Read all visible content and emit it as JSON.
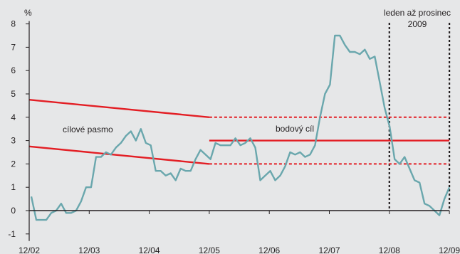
{
  "chart_data": {
    "type": "line",
    "ylabel": "%",
    "ylim": [
      -1,
      8
    ],
    "y_ticks": [
      -1,
      0,
      1,
      2,
      3,
      4,
      5,
      6,
      7,
      8
    ],
    "x_ticks": [
      "12/02",
      "12/03",
      "12/04",
      "12/05",
      "12/06",
      "12/07",
      "12/08",
      "12/09"
    ],
    "grid": false,
    "colors": {
      "series": "#6aa7ad",
      "target": "#e31e24",
      "axis": "#231f20",
      "background": "#e6e7e8"
    },
    "series": [
      {
        "values": [
          0.6,
          -0.4,
          -0.4,
          -0.4,
          -0.1,
          0.0,
          0.3,
          -0.1,
          -0.1,
          0.0,
          0.4,
          1.0,
          1.0,
          2.3,
          2.3,
          2.5,
          2.4,
          2.7,
          2.9,
          3.2,
          3.4,
          3.0,
          3.5,
          2.9,
          2.8,
          1.7,
          1.7,
          1.5,
          1.6,
          1.3,
          1.8,
          1.7,
          1.7,
          2.2,
          2.6,
          2.4,
          2.2,
          2.9,
          2.8,
          2.8,
          2.8,
          3.1,
          2.8,
          2.9,
          3.1,
          2.7,
          1.3,
          1.5,
          1.7,
          1.3,
          1.5,
          1.9,
          2.5,
          2.4,
          2.5,
          2.3,
          2.4,
          2.8,
          4.0,
          5.0,
          5.4,
          7.5,
          7.5,
          7.1,
          6.8,
          6.8,
          6.7,
          6.9,
          6.5,
          6.6,
          5.5,
          4.4,
          3.6,
          2.2,
          2.0,
          2.3,
          1.8,
          1.3,
          1.2,
          0.3,
          0.2,
          0.0,
          -0.2,
          0.5,
          1.0
        ]
      }
    ],
    "target_band": {
      "label": "cílové pasmo",
      "upper_start": 4.75,
      "upper_end": 4.0,
      "lower_start": 2.75,
      "lower_end": 2.0,
      "start": "12/02",
      "end": "12/05"
    },
    "point_target": {
      "label": "bodový cíl",
      "value": 3.0,
      "tolerance": [
        2.0,
        4.0
      ],
      "start": "12/05",
      "end": "12/09"
    },
    "annotation": {
      "line1": "leden až prosinec",
      "line2": "2009",
      "from": "12/08",
      "to": "12/09"
    }
  }
}
